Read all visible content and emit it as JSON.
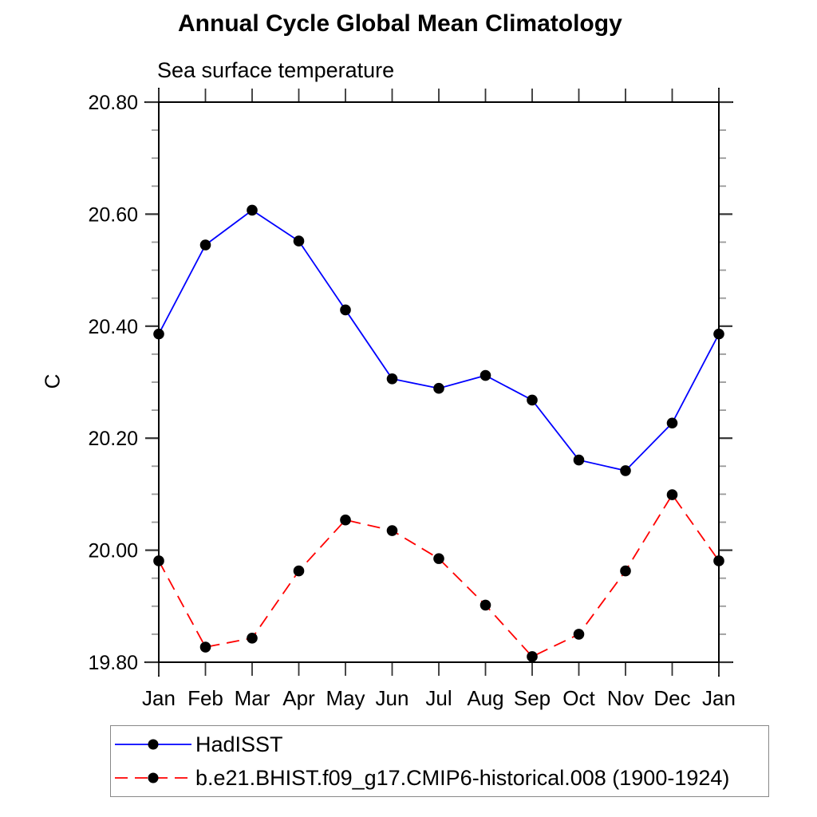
{
  "chart_data": {
    "type": "line",
    "title": "Annual Cycle Global Mean Climatology",
    "subtitle": "Sea surface temperature",
    "ylabel": "C",
    "xlabel": "",
    "categories": [
      "Jan",
      "Feb",
      "Mar",
      "Apr",
      "May",
      "Jun",
      "Jul",
      "Aug",
      "Sep",
      "Oct",
      "Nov",
      "Dec",
      "Jan"
    ],
    "ylim": [
      19.8,
      20.8
    ],
    "ytick_labels": [
      "19.80",
      "20.00",
      "20.20",
      "20.40",
      "20.60",
      "20.80"
    ],
    "ytick_values": [
      19.8,
      20.0,
      20.2,
      20.4,
      20.6,
      20.8
    ],
    "ytick_minor_step": 0.05,
    "grid": false,
    "legend_position": "bottom-left-box",
    "series": [
      {
        "name": "HadISST",
        "color": "#0000ff",
        "line_style": "solid",
        "marker": "circle",
        "marker_color": "#000000",
        "values": [
          20.386,
          20.545,
          20.607,
          20.552,
          20.429,
          20.306,
          20.289,
          20.312,
          20.268,
          20.161,
          20.142,
          20.227,
          20.386
        ]
      },
      {
        "name": "b.e21.BHIST.f09_g17.CMIP6-historical.008 (1900-1924)",
        "color": "#ff0000",
        "line_style": "dashed",
        "marker": "circle",
        "marker_color": "#000000",
        "values": [
          19.981,
          19.827,
          19.843,
          19.963,
          20.054,
          20.035,
          19.985,
          19.902,
          19.81,
          19.85,
          19.963,
          20.099,
          19.981
        ]
      }
    ],
    "colors": {
      "axis": "#000000",
      "major_tick": "#333333",
      "minor_tick": "#999999",
      "text": "#000000",
      "legend_border": "#888888"
    }
  }
}
